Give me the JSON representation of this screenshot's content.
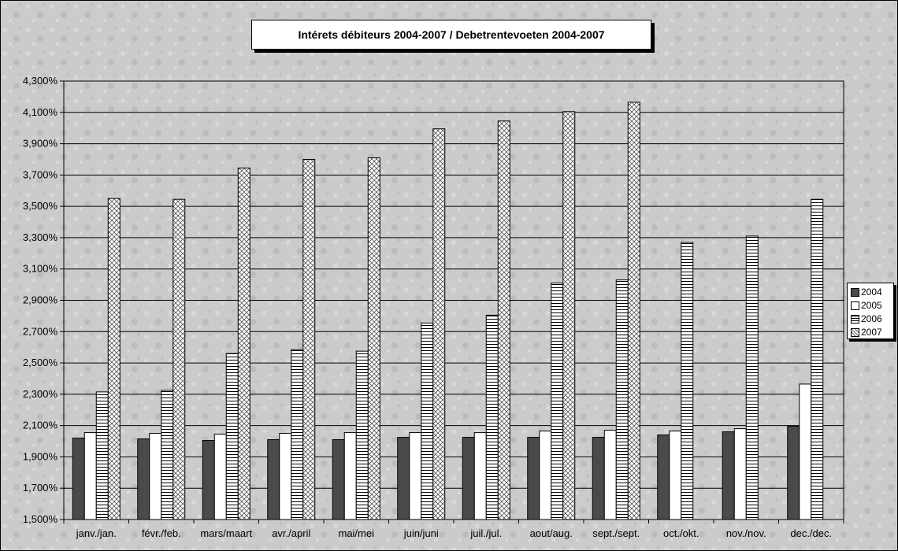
{
  "chart_data": {
    "type": "bar",
    "title": "Intérets débiteurs 2004-2007 / Debetrentevoeten 2004-2007",
    "categories": [
      "janv./jan.",
      "févr./feb.",
      "mars/maart",
      "avr./april",
      "mai/mei",
      "juin/juni",
      "juil./jul.",
      "aout/aug.",
      "sept./sept.",
      "oct./okt.",
      "nov./nov.",
      "dec./dec."
    ],
    "series": [
      {
        "name": "2004",
        "values": [
          2.02,
          2.015,
          2.005,
          2.01,
          2.01,
          2.025,
          2.025,
          2.025,
          2.025,
          2.04,
          2.06,
          2.095
        ],
        "color": "#4a4a4a",
        "pattern": "solid"
      },
      {
        "name": "2005",
        "values": [
          2.055,
          2.05,
          2.045,
          2.05,
          2.055,
          2.055,
          2.055,
          2.065,
          2.07,
          2.065,
          2.08,
          2.365
        ],
        "color": "#ffffff",
        "pattern": "plain"
      },
      {
        "name": "2006",
        "values": [
          2.315,
          2.325,
          2.56,
          2.585,
          2.575,
          2.755,
          2.805,
          3.01,
          3.03,
          3.27,
          3.31,
          3.545
        ],
        "color": "#ffffff",
        "pattern": "hlines"
      },
      {
        "name": "2007",
        "values": [
          3.55,
          3.545,
          3.745,
          3.8,
          3.81,
          3.995,
          4.045,
          4.105,
          4.165,
          null,
          null,
          null
        ],
        "color": "#ffffff",
        "pattern": "crosshatch"
      }
    ],
    "yticks": [
      "1,500%",
      "1,700%",
      "1,900%",
      "2,100%",
      "2,300%",
      "2,500%",
      "2,700%",
      "2,900%",
      "3,100%",
      "3,300%",
      "3,500%",
      "3,700%",
      "3,900%",
      "4,100%",
      "4,300%"
    ],
    "ylim": [
      1.5,
      4.3
    ],
    "ylabel": "",
    "xlabel": "",
    "grid": true,
    "legend_position": "right"
  }
}
